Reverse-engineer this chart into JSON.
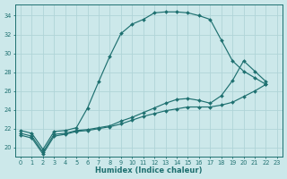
{
  "xlabel": "Humidex (Indice chaleur)",
  "bg_color": "#cce8ea",
  "grid_color": "#b0d4d8",
  "line_color": "#1e7070",
  "xlim": [
    -0.5,
    23.5
  ],
  "ylim": [
    19.0,
    35.2
  ],
  "yticks": [
    20,
    22,
    24,
    26,
    28,
    30,
    32,
    34
  ],
  "xticks": [
    0,
    1,
    2,
    3,
    4,
    5,
    6,
    7,
    8,
    9,
    10,
    11,
    12,
    13,
    14,
    15,
    16,
    17,
    18,
    19,
    20,
    21,
    22,
    23
  ],
  "curve1_x": [
    0,
    1,
    2,
    3,
    4,
    5,
    6,
    7,
    8,
    9,
    10,
    11,
    12,
    13,
    14,
    15,
    16,
    17,
    18,
    19,
    20,
    21,
    22
  ],
  "curve1_y": [
    21.8,
    21.5,
    19.8,
    21.7,
    21.8,
    22.1,
    24.2,
    27.0,
    29.7,
    32.1,
    33.1,
    33.6,
    34.3,
    34.4,
    34.4,
    34.3,
    34.0,
    33.6,
    31.4,
    29.2,
    28.1,
    27.4,
    26.7
  ],
  "curve2_x": [
    0,
    1,
    2,
    3,
    4,
    5,
    6,
    7,
    8,
    9,
    10,
    11,
    12,
    13,
    14,
    15,
    16,
    17,
    18,
    19,
    20,
    21,
    22
  ],
  "curve2_y": [
    21.5,
    21.2,
    19.5,
    21.4,
    21.5,
    21.8,
    21.9,
    22.1,
    22.3,
    22.8,
    23.2,
    23.7,
    24.2,
    24.7,
    25.1,
    25.2,
    25.0,
    24.7,
    25.5,
    27.1,
    29.2,
    28.1,
    27.0
  ],
  "curve3_x": [
    0,
    1,
    2,
    3,
    4,
    5,
    6,
    7,
    8,
    9,
    10,
    11,
    12,
    13,
    14,
    15,
    16,
    17,
    18,
    19,
    20,
    21,
    22
  ],
  "curve3_y": [
    21.3,
    21.0,
    19.3,
    21.2,
    21.4,
    21.7,
    21.8,
    22.0,
    22.2,
    22.5,
    22.9,
    23.3,
    23.6,
    23.9,
    24.1,
    24.3,
    24.3,
    24.3,
    24.5,
    24.8,
    25.4,
    26.0,
    26.7
  ]
}
